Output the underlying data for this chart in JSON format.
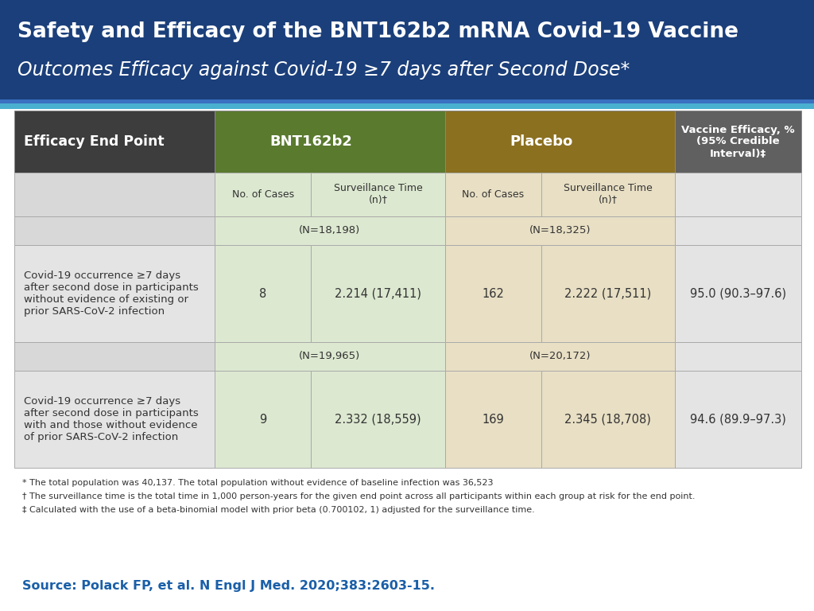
{
  "title_line1": "Safety and Efficacy of the BNT162b2 mRNA Covid-19 Vaccine",
  "title_line2": "Outcomes Efficacy against Covid-19 ≥7 days after Second Dose*",
  "header_bg": "#1b3f7a",
  "title_color": "#ffffff",
  "col_header_dark": "#3d3d3d",
  "col_bnt_green": "#5a7a2e",
  "col_placebo_gold": "#8b7020",
  "col_efficacy_gray": "#606060",
  "row_bg_light_green": "#dce8d0",
  "row_bg_light_tan": "#e8dfc4",
  "row_bg_gray": "#d8d8d8",
  "row_bg_lighter_gray": "#e4e4e4",
  "footnote_color": "#333333",
  "source_color": "#1a5fa8",
  "data_row1_label": "Covid-19 occurrence ≥7 days\nafter second dose in participants\nwithout evidence of existing or\nprior SARS-CoV-2 infection",
  "data_row2_label": "Covid-19 occurrence ≥7 days\nafter second dose in participants\nwith and those without evidence\nof prior SARS-CoV-2 infection",
  "footnotes": [
    "* The total population was 40,137. The total population without evidence of baseline infection was 36,523",
    "† The surveillance time is the total time in 1,000 person-years for the given end point across all participants within each group at risk for the end point.",
    "‡ Calculated with the use of a beta-binomial model with prior beta (0.700102, 1) adjusted for the surveillance time."
  ],
  "source_text": "Source: Polack FP, et al. N Engl J Med. 2020;383:2603-15."
}
